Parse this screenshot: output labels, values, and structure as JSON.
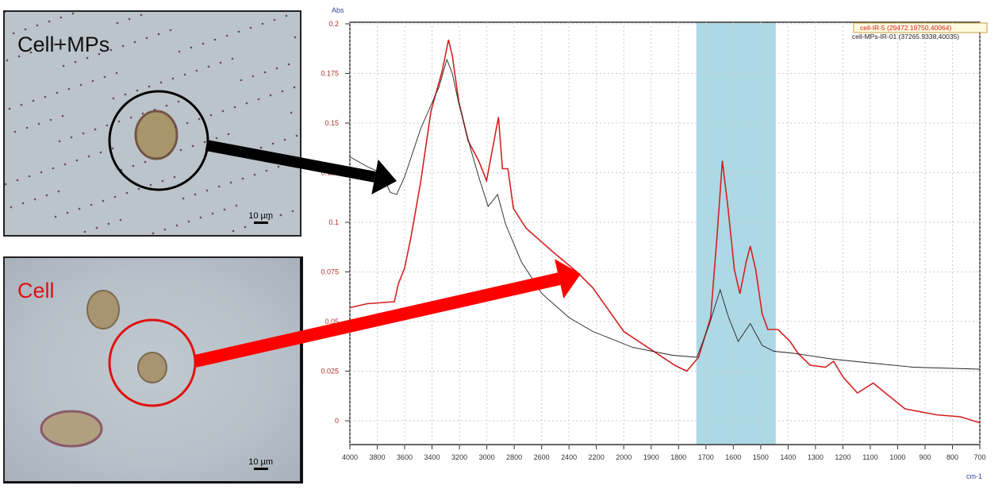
{
  "panels": [
    {
      "label": "Cell+MPs",
      "label_color": "#111111",
      "scale_bar": "10 µm",
      "circle_color": "#000000"
    },
    {
      "label": "Cell",
      "label_color": "#e01010",
      "scale_bar": "10 µm",
      "circle_color": "#e01010"
    }
  ],
  "chart_data": {
    "type": "line",
    "ylabel": "Abs",
    "xlabel": "cm-1",
    "x_reversed": true,
    "x_axis_scale": "piecewise: 200 per tick from 4000 to 2000, 100 per tick from 2000 to 700",
    "xlim": [
      4000,
      700
    ],
    "ylim": [
      -0.012,
      0.201
    ],
    "x_ticks": [
      "4000",
      "3800",
      "3600",
      "3400",
      "3200",
      "3000",
      "2800",
      "2600",
      "2400",
      "2200",
      "2000",
      "1900",
      "1800",
      "1700",
      "1600",
      "1500",
      "1400",
      "1300",
      "1200",
      "1100",
      "1000",
      "900",
      "800",
      "700"
    ],
    "y_ticks": [
      "0",
      "0.025",
      "0.05",
      "0.075",
      "0.1",
      "0.125",
      "0.15",
      "0.175",
      "0.2"
    ],
    "grid": true,
    "legend_placement": "top-right",
    "highlight_band": {
      "x": [
        1735,
        1445
      ],
      "color": "#add8e6"
    },
    "series": [
      {
        "name": "cell-IR-5 (29472.19750,40064)",
        "color": "#d42020",
        "legend_boxed": true,
        "x": [
          4000,
          3872,
          3675,
          3646,
          3600,
          3553,
          3484,
          3408,
          3327,
          3280,
          3252,
          3205,
          3136,
          3060,
          3002,
          2950,
          2915,
          2886,
          2846,
          2806,
          2713,
          2516,
          2342,
          2226,
          2000,
          1814,
          1770,
          1727,
          1683,
          1660,
          1640,
          1620,
          1596,
          1576,
          1553,
          1538,
          1518,
          1495,
          1474,
          1437,
          1393,
          1364,
          1320,
          1263,
          1234,
          1199,
          1147,
          1089,
          1045,
          973,
          857,
          770,
          700
        ],
        "y": [
          0.057,
          0.059,
          0.06,
          0.069,
          0.077,
          0.093,
          0.12,
          0.156,
          0.176,
          0.192,
          0.184,
          0.161,
          0.141,
          0.131,
          0.121,
          0.14,
          0.153,
          0.127,
          0.127,
          0.107,
          0.097,
          0.085,
          0.075,
          0.067,
          0.045,
          0.028,
          0.025,
          0.032,
          0.052,
          0.092,
          0.131,
          0.108,
          0.076,
          0.064,
          0.08,
          0.088,
          0.076,
          0.054,
          0.046,
          0.046,
          0.04,
          0.034,
          0.028,
          0.027,
          0.03,
          0.022,
          0.014,
          0.019,
          0.014,
          0.006,
          0.003,
          0.002,
          -0.001
        ]
      },
      {
        "name": "cell-MPs-IR-01 (37265.9338,40035)",
        "color": "#222222",
        "legend_boxed": false,
        "x": [
          4000,
          3872,
          3774,
          3704,
          3658,
          3600,
          3542,
          3484,
          3408,
          3350,
          3292,
          3252,
          3205,
          3118,
          3060,
          2990,
          2921,
          2863,
          2747,
          2597,
          2400,
          2226,
          1968,
          1822,
          1733,
          1689,
          1648,
          1617,
          1582,
          1538,
          1495,
          1451,
          1379,
          1234,
          1089,
          944,
          700
        ],
        "y": [
          0.133,
          0.128,
          0.125,
          0.115,
          0.114,
          0.123,
          0.135,
          0.147,
          0.159,
          0.168,
          0.182,
          0.175,
          0.16,
          0.137,
          0.123,
          0.108,
          0.114,
          0.099,
          0.08,
          0.064,
          0.052,
          0.045,
          0.037,
          0.033,
          0.032,
          0.048,
          0.066,
          0.052,
          0.04,
          0.049,
          0.038,
          0.035,
          0.034,
          0.031,
          0.029,
          0.027,
          0.026
        ]
      }
    ]
  }
}
